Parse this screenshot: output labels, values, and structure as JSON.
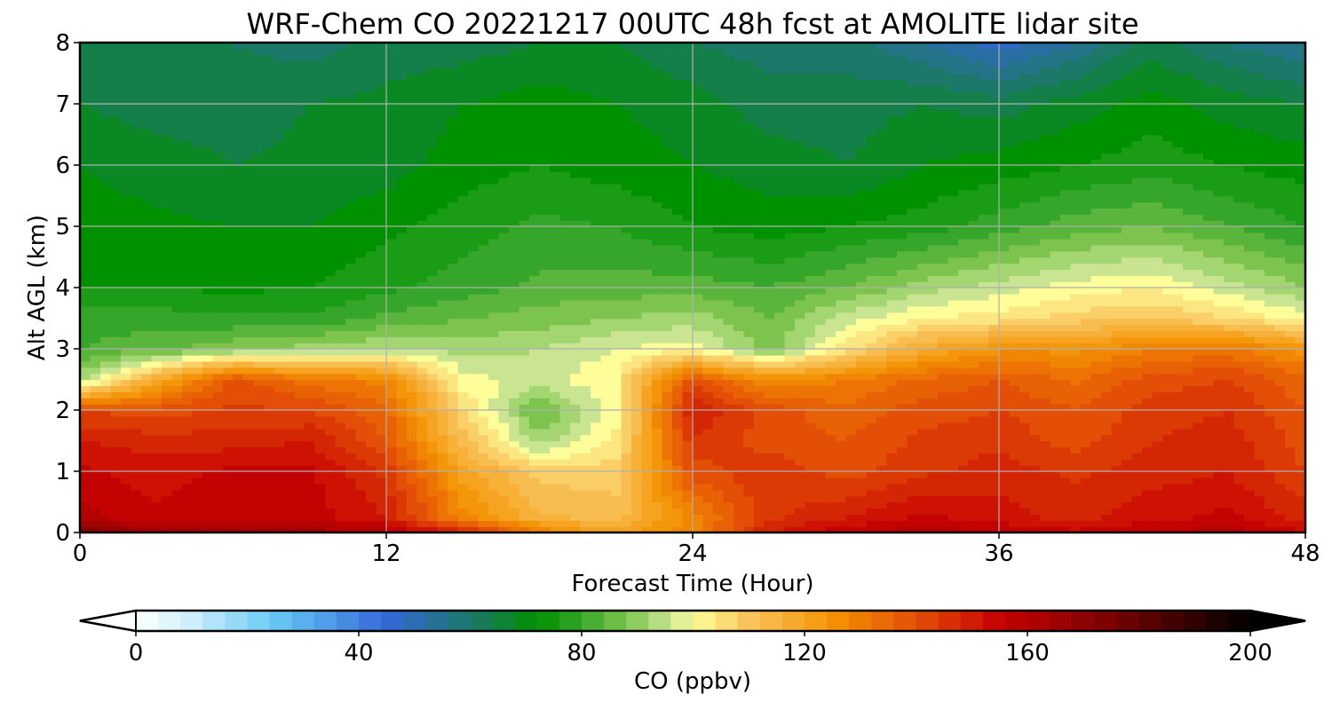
{
  "chart_data": {
    "type": "heatmap",
    "title": "WRF-Chem CO  20221217 00UTC 48h fcst at AMOLITE lidar site",
    "xlabel": "Forecast Time (Hour)",
    "ylabel": "Alt AGL (km)",
    "xlim": [
      0,
      48
    ],
    "ylim": [
      0,
      8
    ],
    "x_ticks": [
      0,
      12,
      24,
      36,
      48
    ],
    "y_ticks": [
      0,
      1,
      2,
      3,
      4,
      5,
      6,
      7,
      8
    ],
    "grid": true,
    "colorbar": {
      "label": "CO  (ppbv)",
      "range": [
        0,
        200
      ],
      "ticks": [
        0,
        40,
        80,
        120,
        160,
        200
      ],
      "extend": "both",
      "orientation": "horizontal",
      "colors": [
        {
          "v": 0,
          "c": "#ffffff"
        },
        {
          "v": 10,
          "c": "#cdeefb"
        },
        {
          "v": 25,
          "c": "#66c8f5"
        },
        {
          "v": 45,
          "c": "#3468d8"
        },
        {
          "v": 62,
          "c": "#197a5a"
        },
        {
          "v": 72,
          "c": "#009100"
        },
        {
          "v": 80,
          "c": "#36a62b"
        },
        {
          "v": 88,
          "c": "#7cc44d"
        },
        {
          "v": 96,
          "c": "#c9e592"
        },
        {
          "v": 100,
          "c": "#fdfd99"
        },
        {
          "v": 110,
          "c": "#f9c45c"
        },
        {
          "v": 125,
          "c": "#f49303"
        },
        {
          "v": 140,
          "c": "#e34f06"
        },
        {
          "v": 155,
          "c": "#c70202"
        },
        {
          "v": 175,
          "c": "#7a0202"
        },
        {
          "v": 200,
          "c": "#000000"
        }
      ]
    },
    "grid_x": [
      0,
      3,
      6,
      9,
      12,
      15,
      18,
      21,
      24,
      27,
      30,
      33,
      36,
      39,
      42,
      45,
      48
    ],
    "grid_y": [
      0,
      0.25,
      1,
      1.5,
      2,
      2.5,
      3,
      3.5,
      4,
      5,
      6,
      7,
      8
    ],
    "values": [
      [
        175,
        165,
        168,
        165,
        160,
        150,
        130,
        120,
        128,
        150,
        158,
        160,
        158,
        155,
        158,
        160,
        155
      ],
      [
        160,
        155,
        158,
        156,
        150,
        128,
        115,
        112,
        128,
        145,
        150,
        155,
        152,
        148,
        153,
        155,
        148
      ],
      [
        155,
        152,
        155,
        155,
        145,
        120,
        108,
        108,
        140,
        145,
        140,
        145,
        148,
        145,
        148,
        150,
        142
      ],
      [
        150,
        148,
        148,
        150,
        138,
        112,
        92,
        103,
        145,
        140,
        138,
        143,
        145,
        140,
        146,
        148,
        140
      ],
      [
        142,
        140,
        143,
        142,
        135,
        106,
        85,
        100,
        150,
        140,
        135,
        140,
        142,
        138,
        144,
        146,
        138
      ],
      [
        92,
        118,
        140,
        132,
        128,
        100,
        96,
        102,
        140,
        126,
        130,
        135,
        138,
        133,
        140,
        142,
        135
      ],
      [
        82,
        85,
        89,
        92,
        94,
        92,
        94,
        98,
        100,
        88,
        104,
        118,
        125,
        125,
        130,
        132,
        124
      ],
      [
        80,
        80,
        79,
        79,
        83,
        86,
        88,
        90,
        92,
        86,
        96,
        102,
        104,
        108,
        110,
        106,
        100
      ],
      [
        74,
        74,
        73,
        74,
        77,
        80,
        83,
        84,
        84,
        82,
        86,
        92,
        96,
        100,
        102,
        96,
        90
      ],
      [
        72,
        71,
        70,
        70,
        73,
        76,
        79,
        78,
        74,
        72,
        74,
        76,
        80,
        84,
        86,
        82,
        78
      ],
      [
        70,
        68,
        66,
        67,
        68,
        72,
        74,
        72,
        70,
        68,
        66,
        70,
        72,
        74,
        76,
        74,
        72
      ],
      [
        66,
        64,
        64,
        66,
        67,
        70,
        72,
        70,
        68,
        64,
        64,
        66,
        64,
        68,
        72,
        68,
        66
      ],
      [
        62,
        62,
        62,
        60,
        64,
        64,
        66,
        66,
        62,
        60,
        60,
        54,
        48,
        54,
        64,
        58,
        54
      ]
    ]
  }
}
